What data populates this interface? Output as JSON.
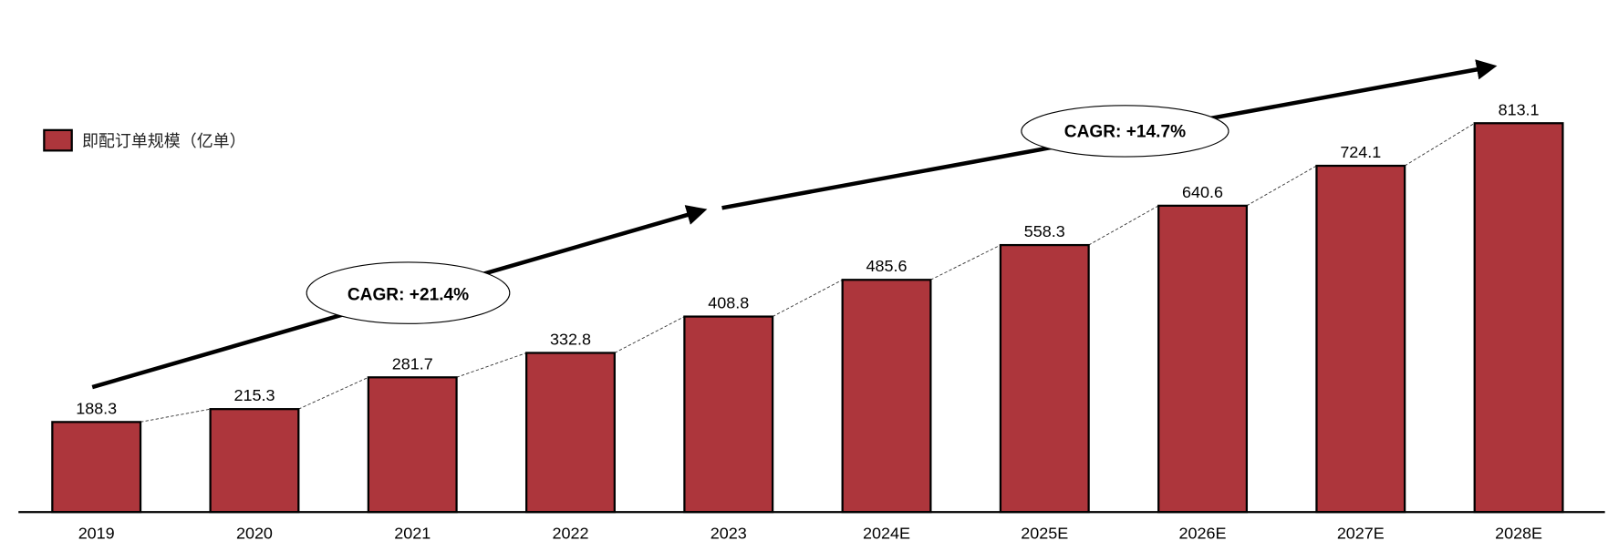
{
  "chart_data": {
    "type": "bar",
    "title": "",
    "xlabel": "",
    "ylabel": "",
    "categories": [
      "2019",
      "2020",
      "2021",
      "2022",
      "2023",
      "2024E",
      "2025E",
      "2026E",
      "2027E",
      "2028E"
    ],
    "series": [
      {
        "name": "即配订单规模（亿单）",
        "color": "#AD363C",
        "values": [
          188.3,
          215.3,
          281.7,
          332.8,
          408.8,
          485.6,
          558.3,
          640.6,
          724.1,
          813.1
        ]
      }
    ],
    "value_labels": [
      "188.3",
      "215.3",
      "281.7",
      "332.8",
      "408.8",
      "485.6",
      "558.3",
      "640.6",
      "724.1",
      "813.1"
    ],
    "ylim": [
      0,
      1070
    ],
    "grid": false,
    "legend": {
      "label": "即配订单规模（亿单）",
      "placement": "top-left"
    },
    "annotations": [
      {
        "text": "CAGR: +21.4%",
        "from": "2019",
        "to": "2023"
      },
      {
        "text": "CAGR: +14.7%",
        "from": "2023",
        "to": "2028E"
      }
    ]
  }
}
